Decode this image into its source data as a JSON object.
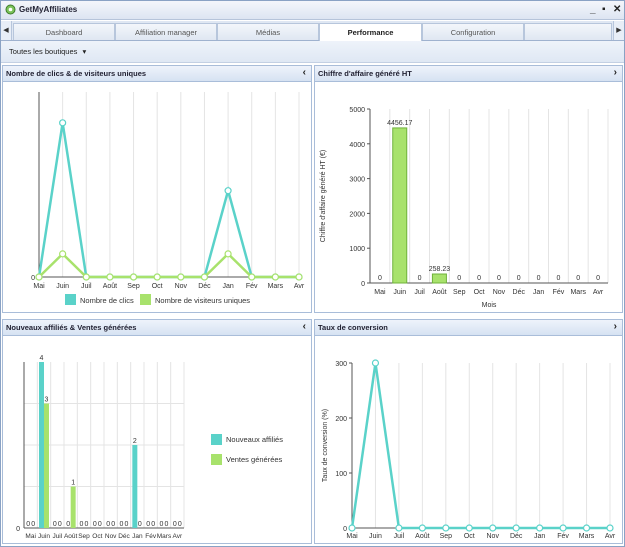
{
  "app": {
    "title": "GetMyAffiliates"
  },
  "window_controls": {
    "minimize": "_",
    "maximize": "▪",
    "close": "✕"
  },
  "colors": {
    "teal": "#5ad2c9",
    "green": "#a8e26c",
    "green_border": "#6fb23a",
    "grid": "#e4e4e4",
    "axis": "#555555"
  },
  "tabs": [
    {
      "label": "Dashboard",
      "active": false
    },
    {
      "label": "Affiliation manager",
      "active": false
    },
    {
      "label": "Médias",
      "active": false
    },
    {
      "label": "Performance",
      "active": true
    },
    {
      "label": "Configuration",
      "active": false
    },
    {
      "label": "",
      "active": false
    }
  ],
  "tab_scroll": {
    "left": "◀",
    "right": "▶"
  },
  "toolbar": {
    "shop_filter": "Toutes les boutiques",
    "dropdown_icon": "▾"
  },
  "panels": {
    "clicks": {
      "title": "Nombre de clics & de visiteurs uniques",
      "toggle": "‹"
    },
    "revenue": {
      "title": "Chiffre d'affaire généré HT",
      "toggle": "›"
    },
    "affiliates": {
      "title": "Nouveaux affiliés & Ventes générées",
      "toggle": "‹"
    },
    "conversion": {
      "title": "Taux de conversion",
      "toggle": "›"
    }
  },
  "chart_data": [
    {
      "id": "clicks",
      "type": "line",
      "categories": [
        "Mai",
        "Juin",
        "Juil",
        "Août",
        "Sep",
        "Oct",
        "Nov",
        "Déc",
        "Jan",
        "Fév",
        "Mars",
        "Avr"
      ],
      "y_ticks": [
        "0"
      ],
      "ylim": [
        0,
        12
      ],
      "series": [
        {
          "name": "Nombre de clics",
          "color": "#5ad2c9",
          "values": [
            0,
            10,
            0,
            0,
            0,
            0,
            0,
            0,
            5.6,
            0,
            0,
            0
          ]
        },
        {
          "name": "Nombre de visiteurs uniques",
          "color": "#a8e26c",
          "values": [
            0,
            1.5,
            0,
            0,
            0,
            0,
            0,
            0,
            1.5,
            0,
            0,
            0
          ]
        }
      ],
      "legend": "bottom",
      "grid": true
    },
    {
      "id": "revenue",
      "type": "bar",
      "categories": [
        "Mai",
        "Juin",
        "Juil",
        "Août",
        "Sep",
        "Oct",
        "Nov",
        "Déc",
        "Jan",
        "Fév",
        "Mars",
        "Avr"
      ],
      "values": [
        0,
        4456.17,
        0,
        258.23,
        0,
        0,
        0,
        0,
        0,
        0,
        0,
        0
      ],
      "value_labels": [
        "0",
        "4456.17",
        "0",
        "258.23",
        "0",
        "0",
        "0",
        "0",
        "0",
        "0",
        "0",
        "0"
      ],
      "ylabel": "Chiffre d'affaire généré HT (€)",
      "xlabel": "Mois",
      "ylim": [
        0,
        5000
      ],
      "y_ticks": [
        0,
        1000,
        2000,
        3000,
        4000,
        5000
      ],
      "grid": true
    },
    {
      "id": "affiliates",
      "type": "bar",
      "categories": [
        "Mai",
        "Juin",
        "Juil",
        "Août",
        "Sep",
        "Oct",
        "Nov",
        "Déc",
        "Jan",
        "Fév",
        "Mars",
        "Avr"
      ],
      "series": [
        {
          "name": "Nouveaux affiliés",
          "color": "#5ad2c9",
          "values": [
            0,
            4,
            0,
            0,
            0,
            0,
            0,
            0,
            2,
            0,
            0,
            0
          ]
        },
        {
          "name": "Ventes générées",
          "color": "#a8e26c",
          "values": [
            0,
            3,
            0,
            1,
            0,
            0,
            0,
            0,
            0,
            0,
            0,
            0
          ]
        }
      ],
      "ylim": [
        0,
        4
      ],
      "y_ticks": [
        "0"
      ],
      "legend": "right",
      "grid": true
    },
    {
      "id": "conversion",
      "type": "line",
      "categories": [
        "Mai",
        "Juin",
        "Juil",
        "Août",
        "Sep",
        "Oct",
        "Nov",
        "Déc",
        "Jan",
        "Fév",
        "Mars",
        "Avr"
      ],
      "series": [
        {
          "name": "Taux de conversion",
          "color": "#5ad2c9",
          "values": [
            0,
            300,
            0,
            0,
            0,
            0,
            0,
            0,
            0,
            0,
            0,
            0
          ]
        }
      ],
      "ylabel": "Taux de conversion (%)",
      "ylim": [
        0,
        300
      ],
      "y_ticks": [
        0,
        100,
        200,
        300
      ],
      "grid": true
    }
  ]
}
